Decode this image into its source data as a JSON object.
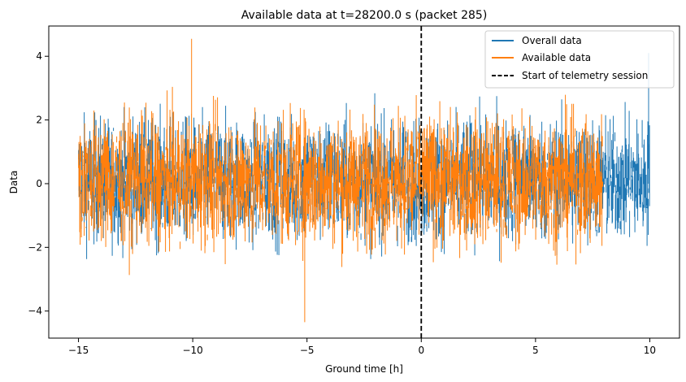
{
  "chart_data": {
    "type": "line",
    "title": "Available data at t=28200.0 s (packet 285)",
    "xlabel": "Ground time [h]",
    "ylabel": "Data",
    "xlim": [
      -16.3,
      11.3
    ],
    "ylim": [
      -4.85,
      4.95
    ],
    "xticks": [
      -15,
      -10,
      -5,
      0,
      5,
      10
    ],
    "yticks": [
      -4,
      -2,
      0,
      2,
      4
    ],
    "xtick_labels": [
      "−15",
      "−10",
      "−5",
      "0",
      "5",
      "10"
    ],
    "ytick_labels": [
      "−4",
      "−2",
      "0",
      "2",
      "4"
    ],
    "grid": false,
    "legend_position": "top-right",
    "series": [
      {
        "name": "Overall data",
        "color": "#1f77b4",
        "x_range": [
          -15,
          10
        ],
        "typical_range": [
          -2.7,
          2.9
        ],
        "envelope": [
          -3.4,
          4.1
        ]
      },
      {
        "name": "Available data",
        "color": "#ff7f0e",
        "x_range": [
          -15,
          7.95
        ],
        "typical_range": [
          -2.8,
          3.0
        ],
        "envelope": [
          -4.4,
          4.55
        ]
      },
      {
        "name": "Start of telemetry session",
        "color": "#000000",
        "style": "dashed",
        "x": 0
      }
    ],
    "annotations": [
      {
        "x": -10.05,
        "y": 4.55
      },
      {
        "x": -5.1,
        "y": -4.35
      },
      {
        "x": 9.95,
        "y": 4.1
      }
    ]
  }
}
